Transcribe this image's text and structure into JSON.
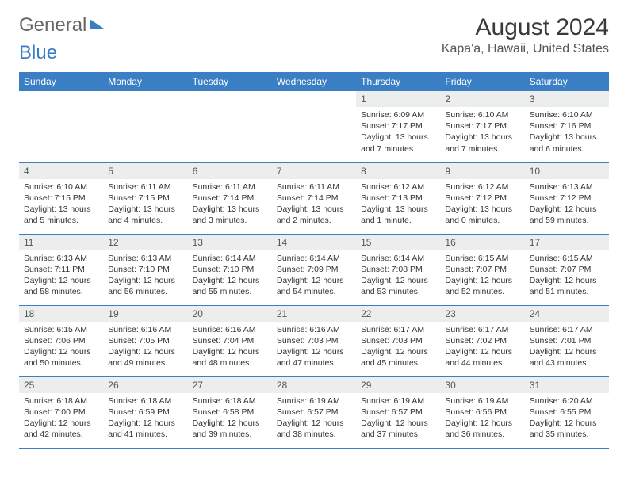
{
  "logo": {
    "part1": "General",
    "part2": "Blue"
  },
  "title": "August 2024",
  "location": "Kapa'a, Hawaii, United States",
  "colors": {
    "header_bg": "#3a7fc4",
    "header_fg": "#ffffff",
    "daynum_bg": "#eceded",
    "border": "#3a7fc4",
    "text": "#333333"
  },
  "weekdays": [
    "Sunday",
    "Monday",
    "Tuesday",
    "Wednesday",
    "Thursday",
    "Friday",
    "Saturday"
  ],
  "weeks": [
    [
      {
        "n": "",
        "sr": "",
        "ss": "",
        "dl": ""
      },
      {
        "n": "",
        "sr": "",
        "ss": "",
        "dl": ""
      },
      {
        "n": "",
        "sr": "",
        "ss": "",
        "dl": ""
      },
      {
        "n": "",
        "sr": "",
        "ss": "",
        "dl": ""
      },
      {
        "n": "1",
        "sr": "Sunrise: 6:09 AM",
        "ss": "Sunset: 7:17 PM",
        "dl": "Daylight: 13 hours and 7 minutes."
      },
      {
        "n": "2",
        "sr": "Sunrise: 6:10 AM",
        "ss": "Sunset: 7:17 PM",
        "dl": "Daylight: 13 hours and 7 minutes."
      },
      {
        "n": "3",
        "sr": "Sunrise: 6:10 AM",
        "ss": "Sunset: 7:16 PM",
        "dl": "Daylight: 13 hours and 6 minutes."
      }
    ],
    [
      {
        "n": "4",
        "sr": "Sunrise: 6:10 AM",
        "ss": "Sunset: 7:15 PM",
        "dl": "Daylight: 13 hours and 5 minutes."
      },
      {
        "n": "5",
        "sr": "Sunrise: 6:11 AM",
        "ss": "Sunset: 7:15 PM",
        "dl": "Daylight: 13 hours and 4 minutes."
      },
      {
        "n": "6",
        "sr": "Sunrise: 6:11 AM",
        "ss": "Sunset: 7:14 PM",
        "dl": "Daylight: 13 hours and 3 minutes."
      },
      {
        "n": "7",
        "sr": "Sunrise: 6:11 AM",
        "ss": "Sunset: 7:14 PM",
        "dl": "Daylight: 13 hours and 2 minutes."
      },
      {
        "n": "8",
        "sr": "Sunrise: 6:12 AM",
        "ss": "Sunset: 7:13 PM",
        "dl": "Daylight: 13 hours and 1 minute."
      },
      {
        "n": "9",
        "sr": "Sunrise: 6:12 AM",
        "ss": "Sunset: 7:12 PM",
        "dl": "Daylight: 13 hours and 0 minutes."
      },
      {
        "n": "10",
        "sr": "Sunrise: 6:13 AM",
        "ss": "Sunset: 7:12 PM",
        "dl": "Daylight: 12 hours and 59 minutes."
      }
    ],
    [
      {
        "n": "11",
        "sr": "Sunrise: 6:13 AM",
        "ss": "Sunset: 7:11 PM",
        "dl": "Daylight: 12 hours and 58 minutes."
      },
      {
        "n": "12",
        "sr": "Sunrise: 6:13 AM",
        "ss": "Sunset: 7:10 PM",
        "dl": "Daylight: 12 hours and 56 minutes."
      },
      {
        "n": "13",
        "sr": "Sunrise: 6:14 AM",
        "ss": "Sunset: 7:10 PM",
        "dl": "Daylight: 12 hours and 55 minutes."
      },
      {
        "n": "14",
        "sr": "Sunrise: 6:14 AM",
        "ss": "Sunset: 7:09 PM",
        "dl": "Daylight: 12 hours and 54 minutes."
      },
      {
        "n": "15",
        "sr": "Sunrise: 6:14 AM",
        "ss": "Sunset: 7:08 PM",
        "dl": "Daylight: 12 hours and 53 minutes."
      },
      {
        "n": "16",
        "sr": "Sunrise: 6:15 AM",
        "ss": "Sunset: 7:07 PM",
        "dl": "Daylight: 12 hours and 52 minutes."
      },
      {
        "n": "17",
        "sr": "Sunrise: 6:15 AM",
        "ss": "Sunset: 7:07 PM",
        "dl": "Daylight: 12 hours and 51 minutes."
      }
    ],
    [
      {
        "n": "18",
        "sr": "Sunrise: 6:15 AM",
        "ss": "Sunset: 7:06 PM",
        "dl": "Daylight: 12 hours and 50 minutes."
      },
      {
        "n": "19",
        "sr": "Sunrise: 6:16 AM",
        "ss": "Sunset: 7:05 PM",
        "dl": "Daylight: 12 hours and 49 minutes."
      },
      {
        "n": "20",
        "sr": "Sunrise: 6:16 AM",
        "ss": "Sunset: 7:04 PM",
        "dl": "Daylight: 12 hours and 48 minutes."
      },
      {
        "n": "21",
        "sr": "Sunrise: 6:16 AM",
        "ss": "Sunset: 7:03 PM",
        "dl": "Daylight: 12 hours and 47 minutes."
      },
      {
        "n": "22",
        "sr": "Sunrise: 6:17 AM",
        "ss": "Sunset: 7:03 PM",
        "dl": "Daylight: 12 hours and 45 minutes."
      },
      {
        "n": "23",
        "sr": "Sunrise: 6:17 AM",
        "ss": "Sunset: 7:02 PM",
        "dl": "Daylight: 12 hours and 44 minutes."
      },
      {
        "n": "24",
        "sr": "Sunrise: 6:17 AM",
        "ss": "Sunset: 7:01 PM",
        "dl": "Daylight: 12 hours and 43 minutes."
      }
    ],
    [
      {
        "n": "25",
        "sr": "Sunrise: 6:18 AM",
        "ss": "Sunset: 7:00 PM",
        "dl": "Daylight: 12 hours and 42 minutes."
      },
      {
        "n": "26",
        "sr": "Sunrise: 6:18 AM",
        "ss": "Sunset: 6:59 PM",
        "dl": "Daylight: 12 hours and 41 minutes."
      },
      {
        "n": "27",
        "sr": "Sunrise: 6:18 AM",
        "ss": "Sunset: 6:58 PM",
        "dl": "Daylight: 12 hours and 39 minutes."
      },
      {
        "n": "28",
        "sr": "Sunrise: 6:19 AM",
        "ss": "Sunset: 6:57 PM",
        "dl": "Daylight: 12 hours and 38 minutes."
      },
      {
        "n": "29",
        "sr": "Sunrise: 6:19 AM",
        "ss": "Sunset: 6:57 PM",
        "dl": "Daylight: 12 hours and 37 minutes."
      },
      {
        "n": "30",
        "sr": "Sunrise: 6:19 AM",
        "ss": "Sunset: 6:56 PM",
        "dl": "Daylight: 12 hours and 36 minutes."
      },
      {
        "n": "31",
        "sr": "Sunrise: 6:20 AM",
        "ss": "Sunset: 6:55 PM",
        "dl": "Daylight: 12 hours and 35 minutes."
      }
    ]
  ]
}
